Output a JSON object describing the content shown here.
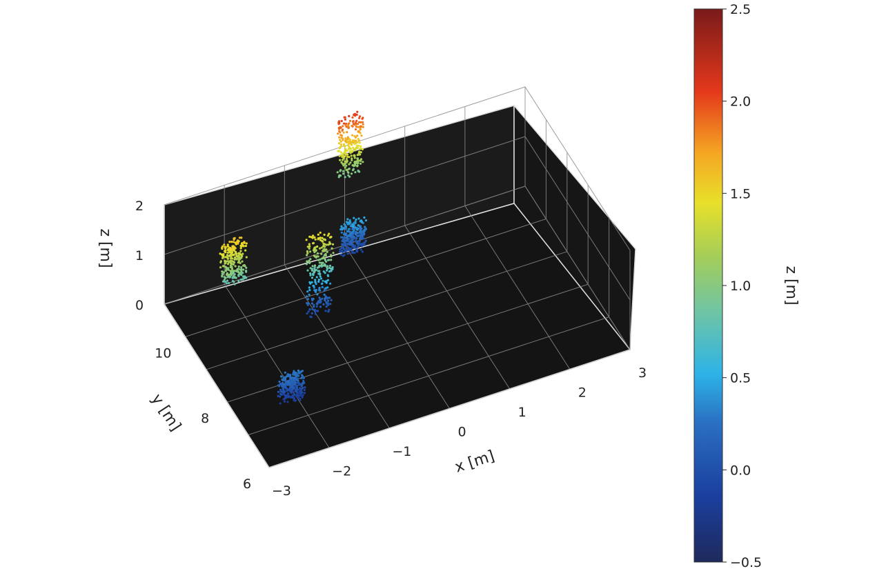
{
  "chart_data": {
    "type": "scatter",
    "title": "",
    "xlabel": "x [m]",
    "ylabel": "y [m]",
    "zlabel": "z [m]",
    "xlim": [
      -3,
      3
    ],
    "ylim": [
      6,
      11
    ],
    "zlim": [
      0,
      2
    ],
    "x_ticks": [
      "−3",
      "−2",
      "−1",
      "0",
      "1",
      "2",
      "3"
    ],
    "y_ticks": [
      "6",
      "8",
      "10"
    ],
    "z_ticks": [
      "0",
      "1",
      "2"
    ],
    "grid": true,
    "background": "#1a1a1a",
    "colormap": "jet",
    "clusters": [
      {
        "x": -2.0,
        "y": 7.8,
        "z_min": -0.2,
        "z_max": 0.3
      },
      {
        "x": -2.2,
        "y": 10.0,
        "z_min": 0.8,
        "z_max": 1.6
      },
      {
        "x": -0.9,
        "y": 9.6,
        "z_min": -0.1,
        "z_max": 1.5
      },
      {
        "x": 0.1,
        "y": 10.9,
        "z_min": -0.1,
        "z_max": 0.5
      },
      {
        "x": 0.3,
        "y": 11.6,
        "z_min": 0.9,
        "z_max": 2.1
      }
    ],
    "colorbar": {
      "label": "z [m]",
      "range": [
        -0.5,
        2.5
      ],
      "ticks": [
        "−0.5",
        "0.0",
        "0.5",
        "1.0",
        "1.5",
        "2.0",
        "2.5"
      ]
    }
  }
}
